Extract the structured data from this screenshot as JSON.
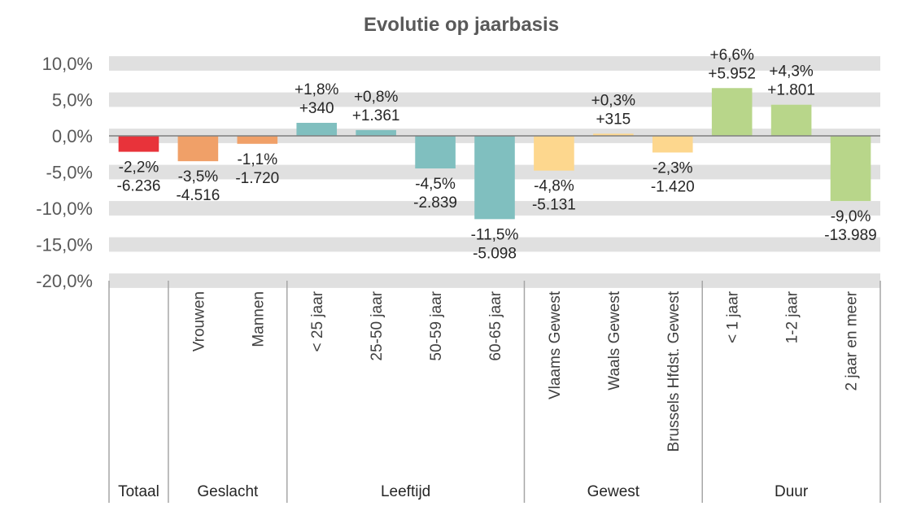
{
  "chart_data": {
    "type": "bar",
    "title": "Evolutie op jaarbasis",
    "ylim": [
      -20,
      10
    ],
    "yticks": [
      10,
      5,
      0,
      -5,
      -10,
      -15,
      -20
    ],
    "ytick_labels": [
      "10,0%",
      "5,0%",
      "0,0%",
      "-5,0%",
      "-10,0%",
      "-15,0%",
      "-20,0%"
    ],
    "grid": "horizontal bands",
    "categories": [
      "",
      "Vrouwen",
      "Mannen",
      "< 25 jaar",
      "25-50 jaar",
      "50-59 jaar",
      "60-65 jaar",
      "Vlaams Gewest",
      "Waals Gewest",
      "Brussels Hfdst. Gewest",
      "< 1 jaar",
      "1-2 jaar",
      "2 jaar en meer"
    ],
    "values": [
      -2.2,
      -3.5,
      -1.1,
      1.8,
      0.8,
      -4.5,
      -11.5,
      -4.8,
      0.3,
      -2.3,
      6.6,
      4.3,
      -9.0
    ],
    "pct_labels": [
      "-2,2%",
      "-3,5%",
      "-1,1%",
      "+1,8%",
      "+0,8%",
      "-4,5%",
      "-11,5%",
      "-4,8%",
      "+0,3%",
      "-2,3%",
      "+6,6%",
      "+4,3%",
      "-9,0%"
    ],
    "abs_labels": [
      "-6.236",
      "-4.516",
      "-1.720",
      "+340",
      "+1.361",
      "-2.839",
      "-5.098",
      "-5.131",
      "+315",
      "-1.420",
      "+5.952",
      "+1.801",
      "-13.989"
    ],
    "groups": [
      {
        "label": "Totaal",
        "count": 1
      },
      {
        "label": "Geslacht",
        "count": 2
      },
      {
        "label": "Leeftijd",
        "count": 4
      },
      {
        "label": "Gewest",
        "count": 3
      },
      {
        "label": "Duur",
        "count": 3
      }
    ],
    "colors": [
      "#e8333a",
      "#f0a068",
      "#f0a068",
      "#80bfbf",
      "#80bfbf",
      "#80bfbf",
      "#80bfbf",
      "#fdd78e",
      "#fdd78e",
      "#fdd78e",
      "#b8d68a",
      "#b8d68a",
      "#b8d68a"
    ],
    "band_color": "#e0e0e0",
    "axis_color": "#a6a6a6"
  }
}
